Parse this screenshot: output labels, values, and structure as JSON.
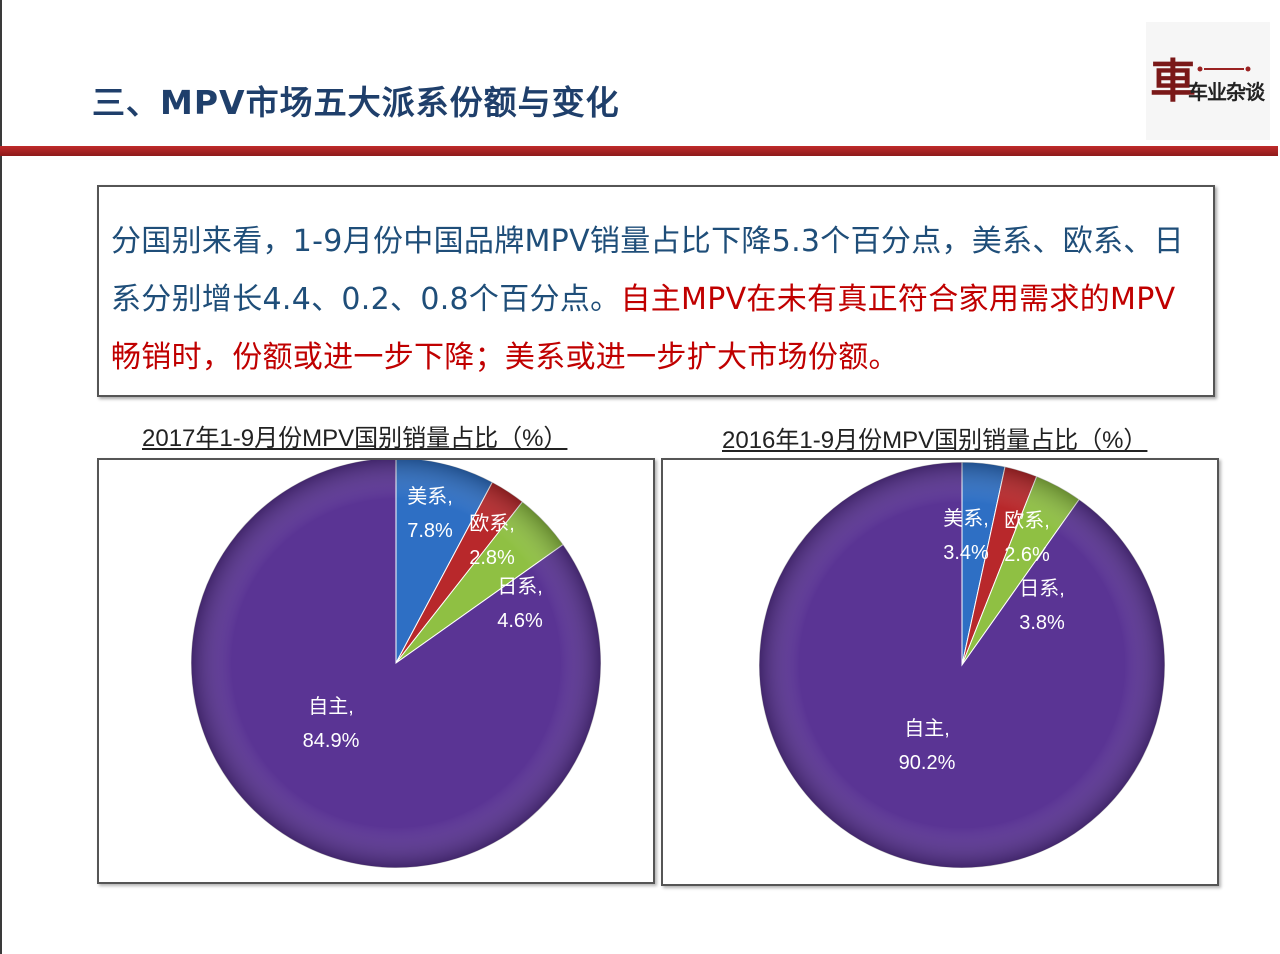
{
  "header": {
    "title": "三、MPV市场五大派系份额与变化",
    "logo_glyph": "車",
    "logo_name": "车业杂谈"
  },
  "summary": {
    "text_blue": "分国别来看，1-9月份中国品牌MPV销量占比下降5.3个百分点，美系、欧系、日系分别增长4.4、0.2、0.8个百分点。",
    "text_red": "自主MPV在未有真正符合家用需求的MPV畅销时，份额或进一步下降；美系或进一步扩大市场份额。"
  },
  "colors": {
    "accent_red": "#c00000",
    "title_blue": "#1f3f6b",
    "rule_red": "#a32020",
    "slice_us": "#2e6fc4",
    "slice_eu": "#b8282b",
    "slice_jp": "#8fc043",
    "slice_cn": "#5a3494"
  },
  "chart_data": [
    {
      "type": "pie",
      "title": "2017年1-9月份MPV国别销量占比（%）",
      "slices": [
        {
          "name": "美系",
          "value": 7.8,
          "label": "7.8%",
          "color": "#2e6fc4"
        },
        {
          "name": "欧系",
          "value": 2.8,
          "label": "2.8%",
          "color": "#b8282b"
        },
        {
          "name": "日系",
          "value": 4.6,
          "label": "4.6%",
          "color": "#8fc043"
        },
        {
          "name": "自主",
          "value": 84.9,
          "label": "84.9%",
          "color": "#5a3494"
        }
      ]
    },
    {
      "type": "pie",
      "title": "2016年1-9月份MPV国别销量占比（%）",
      "slices": [
        {
          "name": "美系",
          "value": 3.4,
          "label": "3.4%",
          "color": "#2e6fc4"
        },
        {
          "name": "欧系",
          "value": 2.6,
          "label": "2.6%",
          "color": "#b8282b"
        },
        {
          "name": "日系",
          "value": 3.8,
          "label": "3.8%",
          "color": "#8fc043"
        },
        {
          "name": "自主",
          "value": 90.2,
          "label": "90.2%",
          "color": "#5a3494"
        }
      ]
    }
  ]
}
